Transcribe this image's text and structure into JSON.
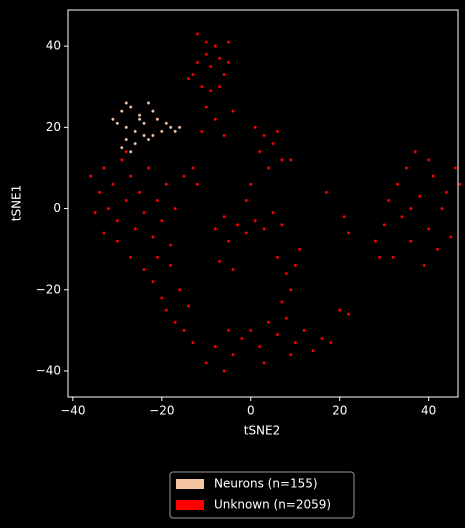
{
  "chart_data": {
    "type": "scatter",
    "xlabel": "tSNE2",
    "ylabel": "tSNE1",
    "xlim": [
      -41.1,
      46.6
    ],
    "ylim": [
      -46.4,
      48.9
    ],
    "xticks": [
      {
        "value": -40,
        "label": "−40"
      },
      {
        "value": -20,
        "label": "−20"
      },
      0,
      20,
      40
    ],
    "yticks": [
      {
        "value": -40,
        "label": "−40"
      },
      {
        "value": -20,
        "label": "−20"
      },
      0,
      20,
      40
    ],
    "legend": "lower center",
    "series": [
      {
        "name": "Neurons (n=155)",
        "color": "#f5c5a3",
        "x": [
          -31,
          -29,
          -28,
          -27,
          -26,
          -25,
          -24,
          -23,
          -22,
          -21,
          -30,
          -28,
          -26,
          -24,
          -22,
          -20,
          -19,
          -18,
          -17,
          -16,
          -29,
          -27,
          -25,
          -23,
          -28
        ],
        "values": [
          22,
          24,
          20,
          25,
          19,
          23,
          21,
          26,
          18,
          22,
          21,
          17,
          16,
          18,
          24,
          19,
          21,
          20,
          19,
          20,
          15,
          14,
          22,
          17,
          26
        ]
      },
      {
        "name": "Unknown (n=2059)",
        "color": "#ff0000",
        "x": [
          -13,
          -12,
          -10,
          -9,
          -8,
          -7,
          -6,
          -11,
          -12,
          -5,
          -9,
          -10,
          -8,
          -11,
          -6,
          -4,
          -14,
          -7,
          -5,
          -10,
          1,
          3,
          5,
          2,
          7,
          4,
          0,
          -1,
          6,
          9,
          -36,
          -34,
          -33,
          -32,
          -31,
          -30,
          -29,
          -28,
          -27,
          -26,
          -25,
          -24,
          -23,
          -22,
          -21,
          -20,
          -19,
          -18,
          -17,
          -33,
          -35,
          -30,
          -27,
          -24,
          -28,
          -15,
          -13,
          -12,
          -22,
          -20,
          -19,
          -18,
          -17,
          -16,
          -15,
          -14,
          -21,
          -13,
          -8,
          -6,
          -5,
          -3,
          -1,
          1,
          3,
          5,
          7,
          -7,
          -4,
          6,
          8,
          10,
          9,
          7,
          11,
          -10,
          -8,
          -6,
          -4,
          -2,
          0,
          2,
          4,
          6,
          8,
          10,
          12,
          14,
          16,
          18,
          3,
          -5,
          9,
          20,
          22,
          28,
          30,
          31,
          32,
          33,
          34,
          35,
          36,
          37,
          38,
          39,
          40,
          41,
          42,
          43,
          44,
          45,
          46,
          47,
          29,
          36,
          40,
          17,
          21,
          22
        ],
        "values": [
          33,
          36,
          38,
          35,
          40,
          37,
          33,
          30,
          43,
          36,
          29,
          25,
          22,
          19,
          18,
          24,
          32,
          30,
          41,
          41,
          20,
          18,
          16,
          14,
          12,
          10,
          6,
          2,
          19,
          12,
          8,
          4,
          10,
          0,
          6,
          -3,
          12,
          2,
          8,
          -5,
          4,
          -1,
          10,
          -7,
          2,
          -3,
          6,
          -9,
          0,
          -6,
          -1,
          -8,
          -12,
          -15,
          14,
          8,
          10,
          6,
          -18,
          -22,
          -25,
          -14,
          -28,
          -20,
          -30,
          -24,
          -12,
          -33,
          -5,
          -2,
          -8,
          -4,
          -6,
          -3,
          -5,
          -1,
          -4,
          -13,
          -15,
          -12,
          -16,
          -14,
          -20,
          -23,
          -10,
          -38,
          -34,
          -40,
          -36,
          -32,
          -30,
          -34,
          -28,
          -31,
          -27,
          -33,
          -30,
          -35,
          -32,
          -33,
          -38,
          -30,
          -36,
          -25,
          -26,
          -8,
          -4,
          2,
          -12,
          6,
          -2,
          10,
          -8,
          14,
          3,
          -14,
          -5,
          8,
          -10,
          0,
          4,
          -7,
          10,
          6,
          -12,
          0,
          12,
          4,
          -2,
          -6
        ]
      }
    ]
  }
}
